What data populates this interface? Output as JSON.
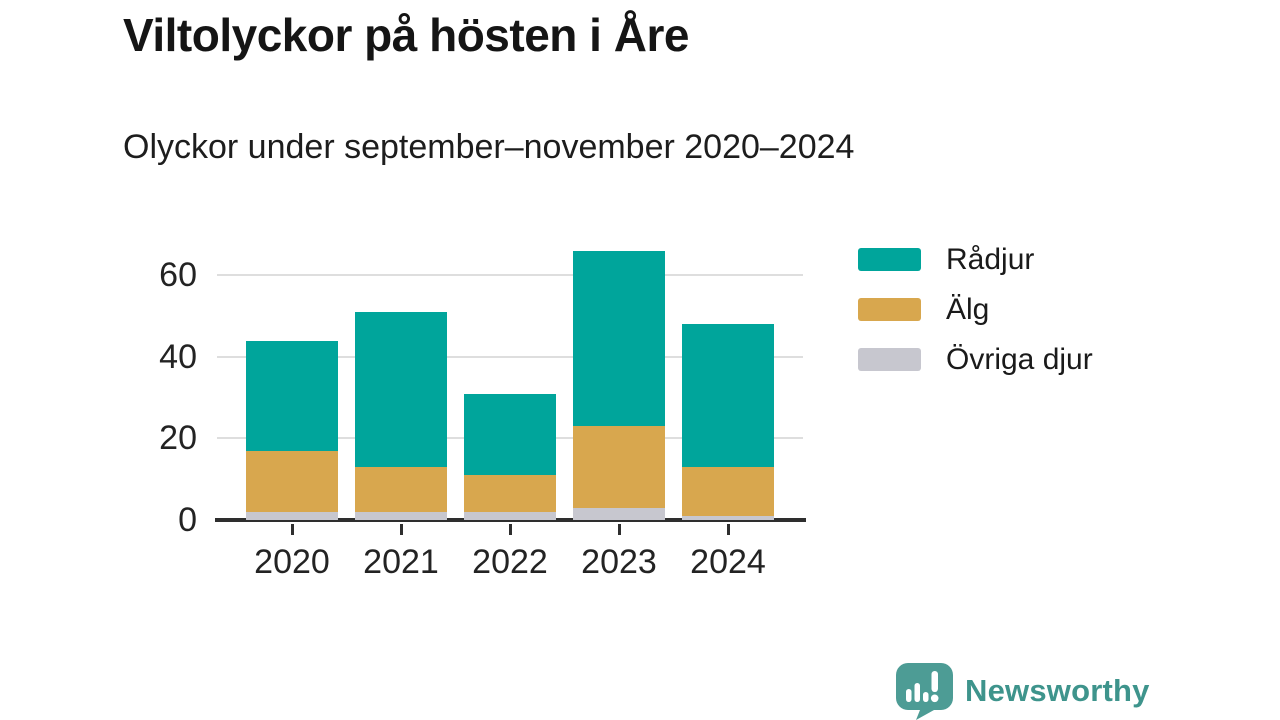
{
  "title": "Viltolyckor på hösten i Åre",
  "subtitle": "Olyckor under september–november 2020–2024",
  "chart_data": {
    "type": "bar",
    "stacked": true,
    "title": "Viltolyckor på hösten i Åre",
    "subtitle": "Olyckor under september–november 2020–2024",
    "categories": [
      "2020",
      "2021",
      "2022",
      "2023",
      "2024"
    ],
    "series": [
      {
        "name": "Rådjur",
        "color": "#00a59b",
        "values": [
          27,
          38,
          20,
          43,
          35
        ]
      },
      {
        "name": "Älg",
        "color": "#d8a74e",
        "values": [
          15,
          11,
          9,
          20,
          12
        ]
      },
      {
        "name": "Övriga djur",
        "color": "#c7c7cf",
        "values": [
          2,
          2,
          2,
          3,
          1
        ]
      }
    ],
    "stack_order_bottom_to_top": [
      "Övriga djur",
      "Älg",
      "Rådjur"
    ],
    "totals": [
      44,
      51,
      31,
      66,
      48
    ],
    "xlabel": "",
    "ylabel": "",
    "yticks": [
      0,
      20,
      40,
      60
    ],
    "ylim": [
      0,
      67
    ],
    "grid": "horizontal",
    "legend_position": "right"
  },
  "legend": {
    "items": [
      {
        "label": "Rådjur",
        "color": "#00a59b"
      },
      {
        "label": "Älg",
        "color": "#d8a74e"
      },
      {
        "label": "Övriga djur",
        "color": "#c7c7cf"
      }
    ]
  },
  "footer": {
    "brand": "Newsworthy"
  },
  "colors": {
    "accent_teal": "#00a59b",
    "accent_gold": "#d8a74e",
    "accent_gray": "#c7c7cf",
    "axis": "#2e2e2e",
    "gridline": "#dedede",
    "brand": "#3e948c",
    "text": "#1a1a1a",
    "background": "#ffffff"
  }
}
